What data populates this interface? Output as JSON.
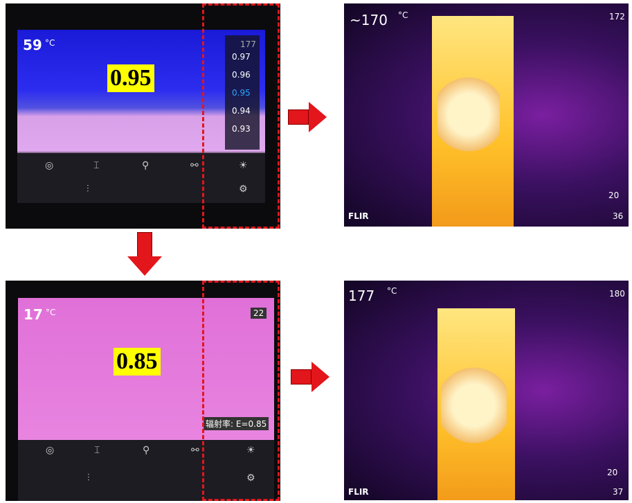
{
  "panels": [
    {
      "temperature": "59",
      "unit": "°C",
      "emissivity_label": "0.95",
      "scale_top": "177",
      "emissivity_options": [
        "0.97",
        "0.96",
        "0.95",
        "0.94",
        "0.93"
      ]
    },
    {
      "temperature": "~170",
      "unit": "°C",
      "scale_max": "172",
      "distance": "20",
      "scale_min": "36",
      "brand": "FLIR"
    },
    {
      "temperature": "17",
      "unit": "°C",
      "emissivity_label": "0.85",
      "scale_top": "22",
      "emissivity_status": "辐射率: E=0.85"
    },
    {
      "temperature": "177",
      "unit": "°C",
      "scale_max": "180",
      "distance": "20",
      "scale_min": "37",
      "brand": "FLIR"
    }
  ]
}
